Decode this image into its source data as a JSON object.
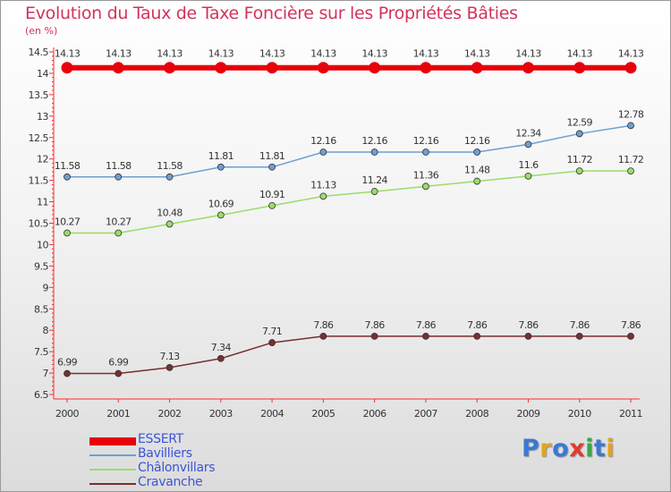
{
  "title": "Evolution du Taux de Taxe Foncière sur les Propriétés Bâties",
  "unit_label": "(en %)",
  "logo": {
    "text": "Proxiti",
    "colors": [
      "#3a78d6",
      "#e5a21b",
      "#3a78d6",
      "#e23b2e",
      "#3aa64a",
      "#3a78d6",
      "#e5a21b"
    ]
  },
  "chart_data": {
    "type": "line",
    "x": [
      "2000",
      "2001",
      "2002",
      "2003",
      "2004",
      "2005",
      "2006",
      "2007",
      "2008",
      "2009",
      "2010",
      "2011"
    ],
    "ylim": [
      6.5,
      14.5
    ],
    "yticks": [
      "6.5",
      "7",
      "7.5",
      "8",
      "8.5",
      "9",
      "9.5",
      "10",
      "10.5",
      "11",
      "11.5",
      "12",
      "12.5",
      "13",
      "13.5",
      "14",
      "14.5"
    ],
    "grid": false,
    "legend_position": "bottom-left",
    "series": [
      {
        "name": "ESSERT",
        "color": "#e8000b",
        "values": [
          14.13,
          14.13,
          14.13,
          14.13,
          14.13,
          14.13,
          14.13,
          14.13,
          14.13,
          14.13,
          14.13,
          14.13
        ],
        "labels": [
          "14.13",
          "14.13",
          "14.13",
          "14.13",
          "14.13",
          "14.13",
          "14.13",
          "14.13",
          "14.13",
          "14.13",
          "14.13",
          "14.13"
        ]
      },
      {
        "name": "Bavilliers",
        "color": "#6f9fd1",
        "values": [
          11.58,
          11.58,
          11.58,
          11.81,
          11.81,
          12.16,
          12.16,
          12.16,
          12.16,
          12.34,
          12.59,
          12.78
        ],
        "labels": [
          "11.58",
          "11.58",
          "11.58",
          "11.81",
          "11.81",
          "12.16",
          "12.16",
          "12.16",
          "12.16",
          "12.34",
          "12.59",
          "12.78"
        ]
      },
      {
        "name": "Châlonvillars",
        "color": "#99dd66",
        "values": [
          10.27,
          10.27,
          10.48,
          10.69,
          10.91,
          11.13,
          11.24,
          11.36,
          11.48,
          11.6,
          11.72,
          11.72
        ],
        "labels": [
          "10.27",
          "10.27",
          "10.48",
          "10.69",
          "10.91",
          "11.13",
          "11.24",
          "11.36",
          "11.48",
          "11.6",
          "11.72",
          "11.72"
        ]
      },
      {
        "name": "Cravanche",
        "color": "#7a2e2e",
        "values": [
          6.99,
          6.99,
          7.13,
          7.34,
          7.71,
          7.86,
          7.86,
          7.86,
          7.86,
          7.86,
          7.86,
          7.86
        ],
        "labels": [
          "6.99",
          "6.99",
          "7.13",
          "7.34",
          "7.71",
          "7.86",
          "7.86",
          "7.86",
          "7.86",
          "7.86",
          "7.86",
          "7.86"
        ]
      }
    ]
  }
}
